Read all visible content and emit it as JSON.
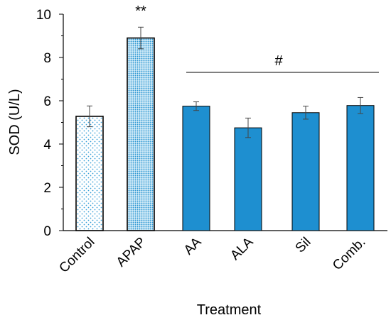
{
  "chart_data": {
    "type": "bar",
    "categories": [
      "Control",
      "APAP",
      "AA",
      "ALA",
      "Sil",
      "Comb."
    ],
    "values": [
      5.28,
      8.9,
      5.75,
      4.75,
      5.45,
      5.78
    ],
    "errors": [
      0.48,
      0.5,
      0.2,
      0.45,
      0.3,
      0.37
    ],
    "xlabel": "Treatment",
    "ylabel": "SOD (U/L)",
    "ylim": [
      0,
      10
    ],
    "yticks": [
      0,
      2,
      4,
      6,
      8,
      10
    ],
    "grid": false,
    "legend": "none",
    "bar_styles": [
      "dotted-light",
      "dotted-dense",
      "solid",
      "solid",
      "solid",
      "solid"
    ],
    "annotations": [
      {
        "text": "**",
        "category": "APAP"
      },
      {
        "text": "#",
        "categories": [
          "AA",
          "ALA",
          "Sil",
          "Comb."
        ]
      }
    ]
  },
  "colors": {
    "bar_fill": "#1e8fd0",
    "bar_stroke": "#000000",
    "dot_color": "#3aa0d8",
    "axis": "#000000"
  }
}
